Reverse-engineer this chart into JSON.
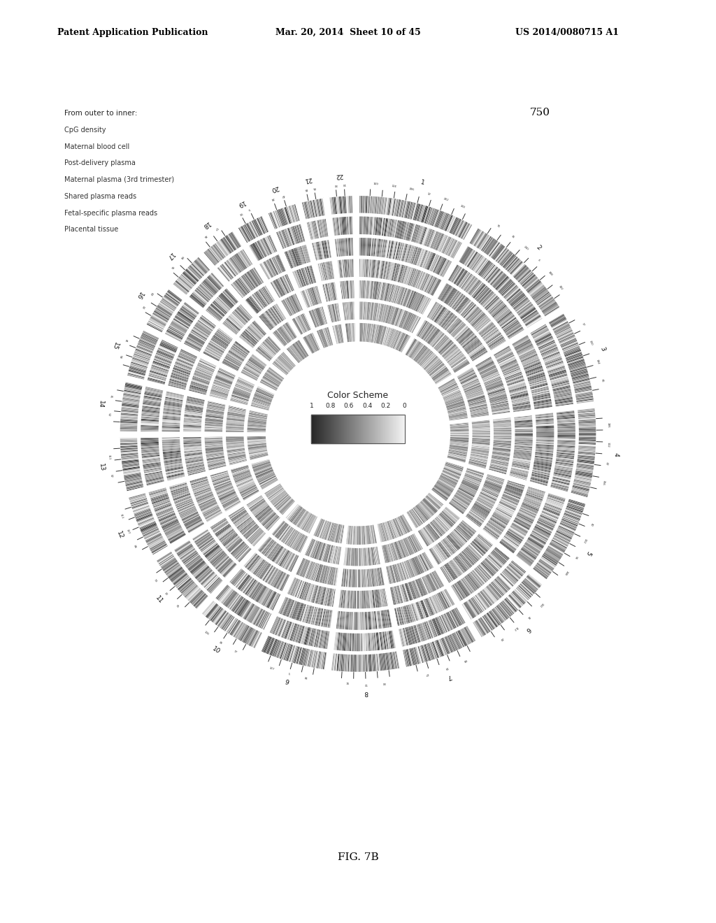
{
  "figure_label": "FIG. 7B",
  "figure_number": "750",
  "legend_title": "From outer to inner:",
  "legend_items": [
    "CpG density",
    "Maternal blood cell",
    "Post-delivery plasma",
    "Maternal plasma (3rd trimester)",
    "Shared plasma reads",
    "Fetal-specific plasma reads",
    "Placental tissue"
  ],
  "color_scheme_title": "Color Scheme",
  "color_bar_labels": [
    "1",
    "0.8",
    "0.6",
    "0.4",
    "0.2",
    "0"
  ],
  "chromosomes": [
    "1",
    "2",
    "3",
    "4",
    "5",
    "6",
    "7",
    "8",
    "9",
    "10",
    "11",
    "12",
    "13",
    "14",
    "15",
    "16",
    "17",
    "18",
    "19",
    "20",
    "21",
    "22"
  ],
  "n_rings": 7,
  "background_color": "#ffffff"
}
